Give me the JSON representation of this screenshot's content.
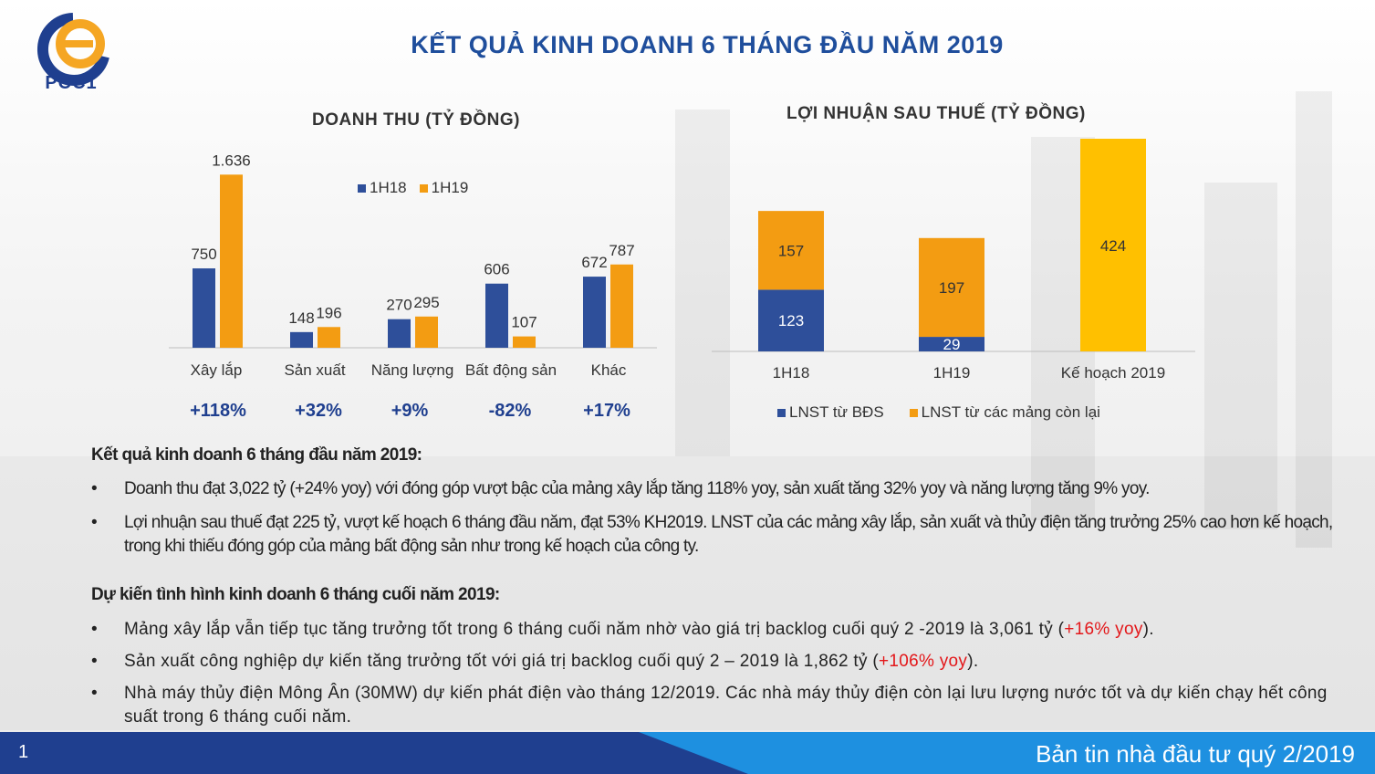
{
  "header": {
    "logo_text": "PCC1",
    "title": "KẾT QUẢ KINH DOANH 6 THÁNG ĐẦU NĂM 2019"
  },
  "colors": {
    "blue": "#2e4f9a",
    "orange": "#f39c12",
    "yellow": "#ffc000",
    "title_blue": "#1f4e9c",
    "footer_blue": "#1f3f8f",
    "highlight_red": "#e3171a"
  },
  "chart_data": [
    {
      "type": "bar",
      "title": "DOANH THU (TỶ ĐỒNG)",
      "categories": [
        "Xây lắp",
        "Sản xuất",
        "Năng lượng",
        "Bất động sản",
        "Khác"
      ],
      "series": [
        {
          "name": "1H18",
          "values": [
            750,
            148,
            270,
            606,
            672
          ],
          "labels": [
            "750",
            "148",
            "270",
            "606",
            "672"
          ],
          "color": "#2e4f9a"
        },
        {
          "name": "1H19",
          "values": [
            1636,
            196,
            295,
            107,
            787
          ],
          "labels": [
            "1.636",
            "196",
            "295",
            "107",
            "787"
          ],
          "color": "#f39c12"
        }
      ],
      "ylim": [
        0,
        1700
      ],
      "growth": [
        "+118%",
        "+32%",
        "+9%",
        "-82%",
        "+17%"
      ],
      "legend": "top-center"
    },
    {
      "type": "bar",
      "stacked": true,
      "title": "LỢI NHUẬN SAU THUẾ (TỶ ĐỒNG)",
      "categories": [
        "1H18",
        "1H19",
        "Kế hoạch 2019"
      ],
      "series": [
        {
          "name": "LNST từ BĐS",
          "values": [
            123,
            29,
            0
          ],
          "color": "#2e4f9a"
        },
        {
          "name": "LNST từ các mảng còn lại",
          "values": [
            157,
            197,
            0
          ],
          "color": "#f39c12"
        }
      ],
      "plan": {
        "category": "Kế hoạch 2019",
        "value": 424,
        "color": "#ffc000"
      },
      "ylim": [
        0,
        424
      ],
      "legend": "bottom"
    }
  ],
  "section1": {
    "heading": "Kết quả kinh doanh 6 tháng đầu năm 2019:",
    "bullets": [
      "Doanh thu đạt 3,022 tỷ (+24% yoy) với đóng góp vượt bậc của mảng xây lắp tăng 118% yoy, sản xuất  tăng 32% yoy và năng lượng  tăng 9% yoy.",
      "Lợi nhuận sau thuế đạt 225 tỷ, vượt kế hoạch 6 tháng đầu năm, đạt 53% KH2019. LNST của các mảng xây lắp, sản xuất và thủy điện tăng trưởng 25% cao hơn kế hoạch, trong khi thiếu đóng góp của mảng bất động sản như trong kế hoạch của công ty."
    ]
  },
  "section2": {
    "heading": "Dự kiến tình hình kinh doanh 6 tháng cuối năm 2019:",
    "bullets": [
      {
        "text": "Mảng xây lắp vẫn tiếp tục tăng trưởng tốt trong 6 tháng cuối năm nhờ vào giá trị backlog cuối quý 2 -2019 là 3,061 tỷ (",
        "highlight": "+16% yoy",
        "after": ")."
      },
      {
        "text": "Sản xuất công nghiệp dự kiến tăng trưởng tốt với giá trị backlog cuối quý 2 – 2019 là 1,862 tỷ (",
        "highlight": "+106% yoy",
        "after": ")."
      },
      {
        "text": "Nhà máy thủy điện Mông Ân (30MW) dự kiến phát điện vào tháng 12/2019. Các nhà máy thủy điện còn lại lưu lượng nước tốt và dự kiến chạy hết công suất trong 6 tháng cuối năm.",
        "highlight": "",
        "after": ""
      }
    ]
  },
  "bullet_char": "•",
  "footer": {
    "page": "1",
    "title": "Bản tin nhà đầu tư quý 2/2019"
  }
}
